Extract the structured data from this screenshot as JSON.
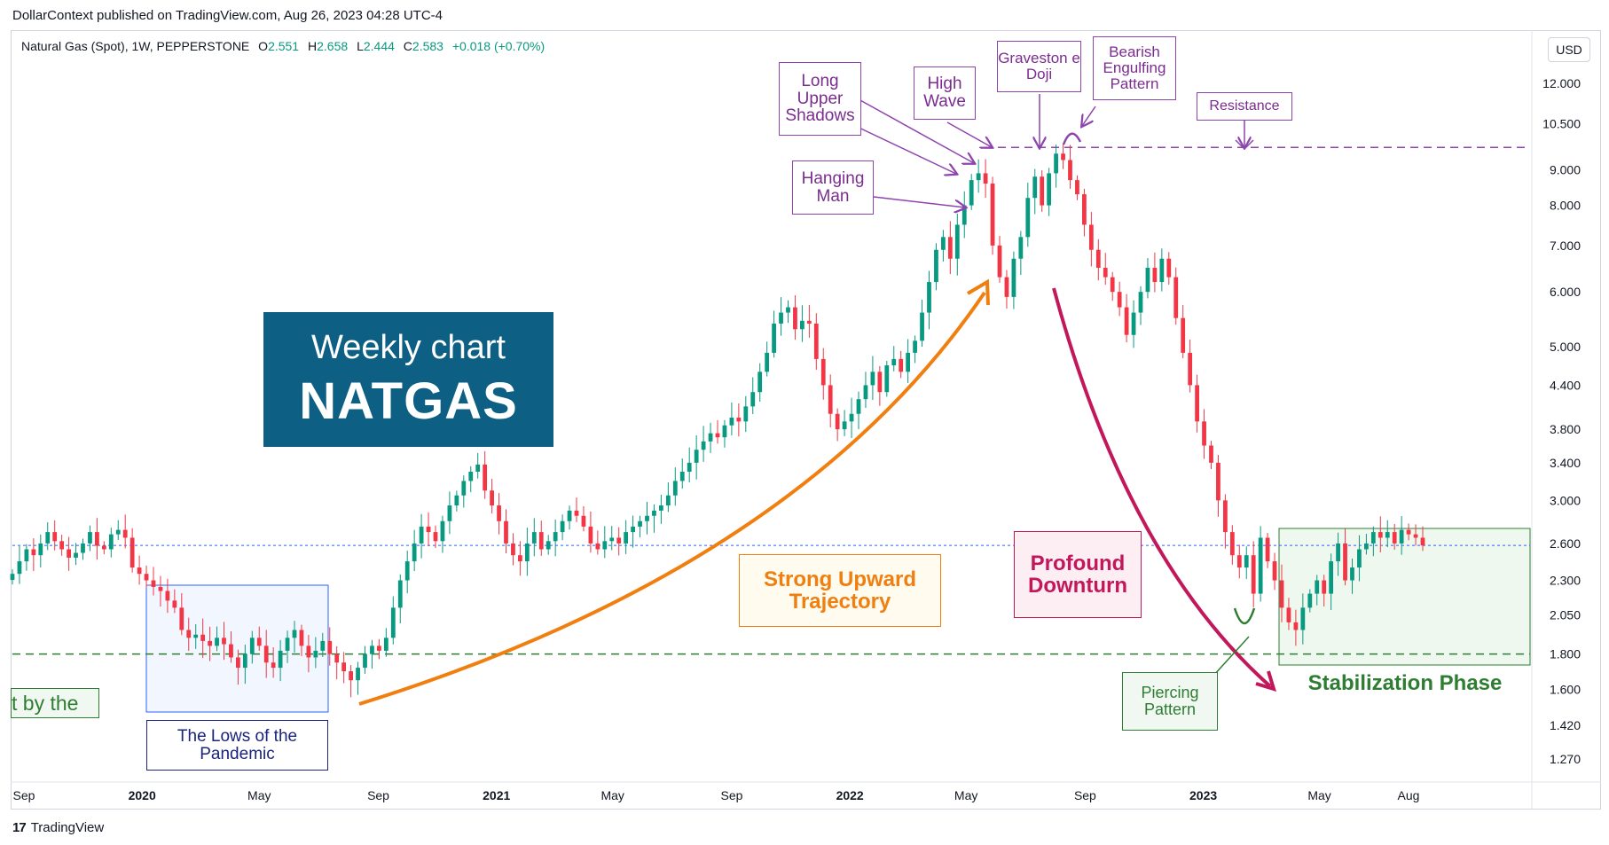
{
  "header": {
    "publish_line": "DollarContext published on TradingView.com, Aug 26, 2023 04:28 UTC-4"
  },
  "symbol": {
    "name": "Natural Gas (Spot), 1W, PEPPERSTONE",
    "o_label": "O",
    "o": "2.551",
    "h_label": "H",
    "h": "2.658",
    "l_label": "L",
    "l": "2.444",
    "c_label": "C",
    "c": "2.583",
    "change": "+0.018 (+0.70%)"
  },
  "currency_button": "USD",
  "footer": {
    "brand": "TradingView",
    "logo": "17"
  },
  "colors": {
    "up": "#089981",
    "down": "#f23645",
    "annotation_purple": "#8e44ad",
    "annotation_orange": "#f07f10",
    "annotation_magenta": "#c2185b",
    "annotation_green": "#2e7d32",
    "box_blue": "#2962ff",
    "title_box": "#0e5f84"
  },
  "chart_data": {
    "type": "candlestick",
    "scale": "log",
    "y_ticks": [
      "12.000",
      "10.500",
      "9.000",
      "8.000",
      "7.000",
      "6.000",
      "5.000",
      "4.400",
      "3.800",
      "3.400",
      "3.000",
      "2.600",
      "2.300",
      "2.050",
      "1.800",
      "1.600",
      "1.420",
      "1.270"
    ],
    "y_tick_values": [
      12.0,
      10.5,
      9.0,
      8.0,
      7.0,
      6.0,
      5.0,
      4.4,
      3.8,
      3.4,
      3.0,
      2.6,
      2.3,
      2.05,
      1.8,
      1.6,
      1.42,
      1.27
    ],
    "x_ticks": [
      {
        "label": "Sep",
        "date": "2019-09-01",
        "bold": false
      },
      {
        "label": "2020",
        "date": "2020-01-01",
        "bold": true
      },
      {
        "label": "May",
        "date": "2020-05-01",
        "bold": false
      },
      {
        "label": "Sep",
        "date": "2020-09-01",
        "bold": false
      },
      {
        "label": "2021",
        "date": "2021-01-01",
        "bold": true
      },
      {
        "label": "May",
        "date": "2021-05-01",
        "bold": false
      },
      {
        "label": "Sep",
        "date": "2021-09-01",
        "bold": false
      },
      {
        "label": "2022",
        "date": "2022-01-01",
        "bold": true
      },
      {
        "label": "May",
        "date": "2022-05-01",
        "bold": false
      },
      {
        "label": "Sep",
        "date": "2022-09-01",
        "bold": false
      },
      {
        "label": "2023",
        "date": "2023-01-01",
        "bold": true
      },
      {
        "label": "May",
        "date": "2023-05-01",
        "bold": false
      },
      {
        "label": "Aug",
        "date": "2023-08-01",
        "bold": false
      }
    ],
    "last_price": 2.583,
    "resistance_level": 9.7,
    "support_level": 1.8,
    "weekly_closes": [
      2.35,
      2.45,
      2.55,
      2.5,
      2.6,
      2.7,
      2.62,
      2.55,
      2.48,
      2.52,
      2.6,
      2.7,
      2.58,
      2.55,
      2.68,
      2.72,
      2.65,
      2.4,
      2.35,
      2.3,
      2.25,
      2.22,
      2.15,
      2.1,
      1.95,
      1.9,
      1.92,
      1.88,
      1.85,
      1.9,
      1.86,
      1.78,
      1.72,
      1.8,
      1.9,
      1.85,
      1.75,
      1.72,
      1.82,
      1.9,
      1.95,
      1.85,
      1.78,
      1.82,
      1.88,
      1.8,
      1.75,
      1.7,
      1.65,
      1.72,
      1.8,
      1.85,
      1.82,
      1.9,
      2.1,
      2.3,
      2.45,
      2.6,
      2.75,
      2.7,
      2.62,
      2.8,
      2.95,
      3.05,
      3.2,
      3.3,
      3.38,
      3.1,
      2.95,
      2.8,
      2.6,
      2.5,
      2.45,
      2.6,
      2.7,
      2.55,
      2.62,
      2.7,
      2.8,
      2.9,
      2.85,
      2.75,
      2.6,
      2.55,
      2.62,
      2.65,
      2.6,
      2.7,
      2.75,
      2.8,
      2.85,
      2.9,
      2.95,
      3.05,
      3.2,
      3.3,
      3.4,
      3.55,
      3.65,
      3.75,
      3.7,
      3.85,
      3.95,
      3.9,
      4.1,
      4.3,
      4.6,
      4.9,
      5.4,
      5.6,
      5.7,
      5.3,
      5.45,
      5.4,
      4.8,
      4.4,
      4.0,
      3.8,
      3.9,
      4.0,
      4.2,
      4.4,
      4.6,
      4.3,
      4.7,
      4.8,
      4.6,
      4.9,
      5.1,
      5.6,
      6.2,
      6.9,
      7.2,
      6.7,
      7.5,
      8.0,
      8.7,
      8.9,
      8.6,
      7.0,
      6.3,
      5.9,
      6.7,
      7.2,
      8.2,
      8.8,
      8.0,
      8.9,
      9.5,
      9.3,
      8.7,
      8.3,
      7.5,
      6.9,
      6.5,
      6.3,
      6.0,
      5.7,
      5.2,
      5.6,
      6.0,
      6.5,
      6.2,
      6.7,
      6.3,
      5.5,
      4.9,
      4.4,
      3.9,
      3.6,
      3.4,
      3.0,
      2.7,
      2.5,
      2.4,
      2.5,
      2.2,
      2.65,
      2.45,
      2.3,
      2.1,
      2.0,
      1.95,
      2.1,
      2.2,
      2.3,
      2.2,
      2.45,
      2.6,
      2.3,
      2.4,
      2.55,
      2.6,
      2.7,
      2.65,
      2.7,
      2.6,
      2.72,
      2.68,
      2.65,
      2.583
    ]
  },
  "annotations": {
    "weekly_line1": "Weekly chart",
    "weekly_line2": "NATGAS",
    "long_upper_shadows": "Long Upper Shadows",
    "high_wave": "High Wave",
    "gravestone_doji": "Graveston e Doji",
    "bearish_engulfing": "Bearish Engulfing Pattern",
    "resistance": "Resistance",
    "hanging_man": "Hanging Man",
    "strong_upward": "Strong Upward Trajectory",
    "profound_downturn": "Profound Downturn",
    "stabilization": "Stabilization Phase",
    "piercing_pattern": "Piercing Pattern",
    "lows_pandemic": "The Lows of the Pandemic",
    "left_cut_text": "t by the"
  }
}
